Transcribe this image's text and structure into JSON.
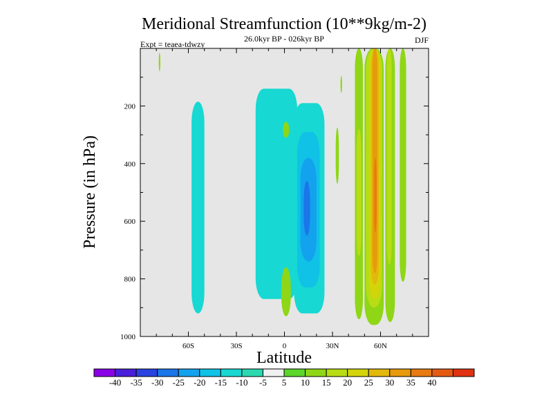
{
  "chart_data": {
    "type": "heatmap",
    "title": "Meridional Streamfunction (10**9kg/m-2)",
    "subtitle": "26.0kyr BP - 026kyr BP",
    "left_label": "Expt = teaea-tdwzy",
    "right_label": "DJF",
    "xlabel": "Latitude",
    "ylabel": "Pressure (in hPa)",
    "xlim": [
      -90,
      90
    ],
    "ylim": [
      0,
      1000
    ],
    "y_inverted": true,
    "x_ticks": [
      {
        "value": -60,
        "label": "60S"
      },
      {
        "value": -30,
        "label": "30S"
      },
      {
        "value": 0,
        "label": "0"
      },
      {
        "value": 30,
        "label": "30N"
      },
      {
        "value": 60,
        "label": "60N"
      }
    ],
    "y_ticks": [
      {
        "value": 200,
        "label": "200"
      },
      {
        "value": 400,
        "label": "400"
      },
      {
        "value": 600,
        "label": "600"
      },
      {
        "value": 800,
        "label": "800"
      },
      {
        "value": 1000,
        "label": "1000"
      }
    ],
    "background_color": "#e6e6e6",
    "colorbar": {
      "colors": [
        "#8a00e6",
        "#4a1fd9",
        "#2a43e0",
        "#1b76e8",
        "#13a2ee",
        "#10c2e6",
        "#17d8d2",
        "#2ad9b0",
        "#f0f0f0",
        "#5cd62a",
        "#8fd616",
        "#b8dd14",
        "#d4d40a",
        "#e2b80a",
        "#e69a0c",
        "#e77a10",
        "#e55a12",
        "#e03212"
      ],
      "labels": [
        "-40",
        "-35",
        "-30",
        "-25",
        "-20",
        "-15",
        "-10",
        "-5",
        "5",
        "10",
        "15",
        "20",
        "25",
        "30",
        "35",
        "40"
      ]
    },
    "regions": [
      {
        "level": 10,
        "lat": [
          -78.5,
          -77.5
        ],
        "p": [
          15,
          80
        ]
      },
      {
        "level": -5,
        "lat": [
          -58,
          -50
        ],
        "p": [
          185,
          920
        ]
      },
      {
        "level": -5,
        "lat": [
          -18,
          8
        ],
        "p": [
          140,
          870
        ]
      },
      {
        "level": 10,
        "lat": [
          -1,
          3
        ],
        "p": [
          255,
          310
        ]
      },
      {
        "level": 10,
        "lat": [
          -2,
          4
        ],
        "p": [
          760,
          930
        ]
      },
      {
        "level": -5,
        "lat": [
          6,
          25
        ],
        "p": [
          190,
          920
        ]
      },
      {
        "level": -10,
        "lat": [
          8,
          22
        ],
        "p": [
          290,
          830
        ]
      },
      {
        "level": -15,
        "lat": [
          10,
          20
        ],
        "p": [
          380,
          740
        ]
      },
      {
        "level": -20,
        "lat": [
          12,
          16
        ],
        "p": [
          460,
          650
        ]
      },
      {
        "level": 10,
        "lat": [
          35,
          36
        ],
        "p": [
          95,
          155
        ]
      },
      {
        "level": 10,
        "lat": [
          32,
          34
        ],
        "p": [
          275,
          470
        ]
      },
      {
        "level": 10,
        "lat": [
          44,
          49
        ],
        "p": [
          0,
          940
        ]
      },
      {
        "level": 15,
        "lat": [
          45,
          48
        ],
        "p": [
          280,
          720
        ]
      },
      {
        "level": 10,
        "lat": [
          50,
          62
        ],
        "p": [
          0,
          960
        ]
      },
      {
        "level": 15,
        "lat": [
          51,
          61
        ],
        "p": [
          0,
          900
        ]
      },
      {
        "level": 20,
        "lat": [
          53,
          60
        ],
        "p": [
          0,
          870
        ]
      },
      {
        "level": 25,
        "lat": [
          54,
          59
        ],
        "p": [
          0,
          820
        ]
      },
      {
        "level": 30,
        "lat": [
          55,
          58
        ],
        "p": [
          0,
          780
        ]
      },
      {
        "level": 35,
        "lat": [
          56,
          57.5
        ],
        "p": [
          380,
          640
        ]
      },
      {
        "level": 10,
        "lat": [
          63,
          69
        ],
        "p": [
          0,
          950
        ]
      },
      {
        "level": 15,
        "lat": [
          64,
          67
        ],
        "p": [
          0,
          750
        ]
      },
      {
        "level": 10,
        "lat": [
          72,
          76
        ],
        "p": [
          0,
          810
        ]
      }
    ]
  }
}
